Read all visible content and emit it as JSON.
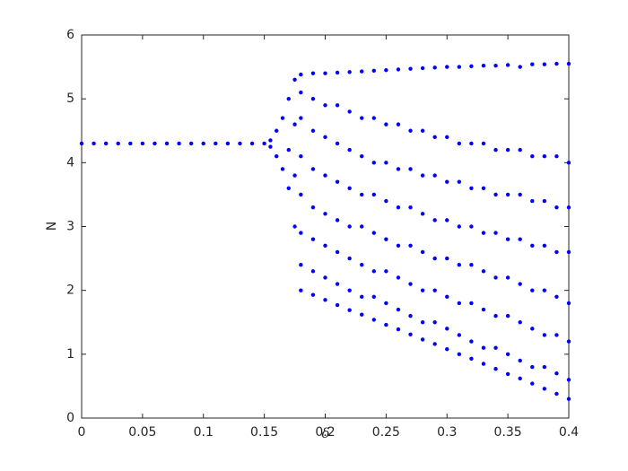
{
  "chart_data": {
    "type": "scatter",
    "xlabel": "δ",
    "ylabel": "N",
    "color": "#0000ff",
    "xlim": [
      0,
      0.4
    ],
    "ylim": [
      0,
      6
    ],
    "xticks": [
      0,
      0.05,
      0.1,
      0.15,
      0.2,
      0.25,
      0.3,
      0.35,
      0.4
    ],
    "yticks": [
      0,
      1,
      2,
      3,
      4,
      5,
      6
    ],
    "x": [
      0,
      0.01,
      0.02,
      0.03,
      0.04,
      0.05,
      0.06,
      0.07,
      0.08,
      0.09,
      0.1,
      0.11,
      0.12,
      0.13,
      0.14,
      0.15,
      0.155,
      0.155,
      0.16,
      0.16,
      0.165,
      0.165,
      0.17,
      0.17,
      0.17,
      0.175,
      0.175,
      0.175,
      0.175,
      0.18,
      0.18,
      0.18,
      0.18,
      0.18,
      0.18,
      0.18,
      0.18,
      0.19,
      0.19,
      0.19,
      0.19,
      0.19,
      0.19,
      0.19,
      0.19,
      0.2,
      0.2,
      0.2,
      0.2,
      0.2,
      0.2,
      0.2,
      0.2,
      0.21,
      0.21,
      0.21,
      0.21,
      0.21,
      0.21,
      0.21,
      0.21,
      0.22,
      0.22,
      0.22,
      0.22,
      0.22,
      0.22,
      0.22,
      0.22,
      0.23,
      0.23,
      0.23,
      0.23,
      0.23,
      0.23,
      0.23,
      0.23,
      0.24,
      0.24,
      0.24,
      0.24,
      0.24,
      0.24,
      0.24,
      0.24,
      0.25,
      0.25,
      0.25,
      0.25,
      0.25,
      0.25,
      0.25,
      0.25,
      0.26,
      0.26,
      0.26,
      0.26,
      0.26,
      0.26,
      0.26,
      0.26,
      0.27,
      0.27,
      0.27,
      0.27,
      0.27,
      0.27,
      0.27,
      0.27,
      0.28,
      0.28,
      0.28,
      0.28,
      0.28,
      0.28,
      0.28,
      0.28,
      0.29,
      0.29,
      0.29,
      0.29,
      0.29,
      0.29,
      0.29,
      0.29,
      0.3,
      0.3,
      0.3,
      0.3,
      0.3,
      0.3,
      0.3,
      0.3,
      0.31,
      0.31,
      0.31,
      0.31,
      0.31,
      0.31,
      0.31,
      0.31,
      0.32,
      0.32,
      0.32,
      0.32,
      0.32,
      0.32,
      0.32,
      0.32,
      0.33,
      0.33,
      0.33,
      0.33,
      0.33,
      0.33,
      0.33,
      0.33,
      0.34,
      0.34,
      0.34,
      0.34,
      0.34,
      0.34,
      0.34,
      0.34,
      0.35,
      0.35,
      0.35,
      0.35,
      0.35,
      0.35,
      0.35,
      0.35,
      0.36,
      0.36,
      0.36,
      0.36,
      0.36,
      0.36,
      0.36,
      0.36,
      0.37,
      0.37,
      0.37,
      0.37,
      0.37,
      0.37,
      0.37,
      0.37,
      0.38,
      0.38,
      0.38,
      0.38,
      0.38,
      0.38,
      0.38,
      0.38,
      0.39,
      0.39,
      0.39,
      0.39,
      0.39,
      0.39,
      0.39,
      0.39,
      0.4,
      0.4,
      0.4,
      0.4,
      0.4,
      0.4,
      0.4,
      0.4
    ],
    "values": [
      4.3,
      4.3,
      4.3,
      4.3,
      4.3,
      4.3,
      4.3,
      4.3,
      4.3,
      4.3,
      4.3,
      4.3,
      4.3,
      4.3,
      4.3,
      4.3,
      4.25,
      4.35,
      4.1,
      4.5,
      3.9,
      4.7,
      3.6,
      4.2,
      5.0,
      3.0,
      3.8,
      4.6,
      5.3,
      2.0,
      2.4,
      2.9,
      3.5,
      4.1,
      4.7,
      5.1,
      5.38,
      1.93,
      2.3,
      2.8,
      3.3,
      3.9,
      4.5,
      5.0,
      5.4,
      1.85,
      2.2,
      2.7,
      3.2,
      3.8,
      4.4,
      4.9,
      5.4,
      1.77,
      2.1,
      2.6,
      3.1,
      3.7,
      4.3,
      4.9,
      5.41,
      1.69,
      2.0,
      2.5,
      3.0,
      3.6,
      4.2,
      4.8,
      5.42,
      1.62,
      1.9,
      2.4,
      3.0,
      3.5,
      4.1,
      4.7,
      5.43,
      1.54,
      1.9,
      2.3,
      2.9,
      3.5,
      4.0,
      4.7,
      5.44,
      1.46,
      1.8,
      2.3,
      2.8,
      3.4,
      4.0,
      4.6,
      5.45,
      1.39,
      1.7,
      2.2,
      2.7,
      3.3,
      3.9,
      4.6,
      5.46,
      1.31,
      1.6,
      2.1,
      2.7,
      3.3,
      3.9,
      4.5,
      5.47,
      1.23,
      1.5,
      2.0,
      2.6,
      3.2,
      3.8,
      4.5,
      5.48,
      1.16,
      1.5,
      2.0,
      2.5,
      3.1,
      3.8,
      4.4,
      5.49,
      1.08,
      1.4,
      1.9,
      2.5,
      3.1,
      3.7,
      4.4,
      5.5,
      1.0,
      1.3,
      1.8,
      2.4,
      3.0,
      3.7,
      4.3,
      5.5,
      0.93,
      1.2,
      1.8,
      2.4,
      3.0,
      3.6,
      4.3,
      5.51,
      0.85,
      1.1,
      1.7,
      2.3,
      2.9,
      3.6,
      4.3,
      5.52,
      0.77,
      1.1,
      1.6,
      2.2,
      2.9,
      3.5,
      4.2,
      5.52,
      0.69,
      1.0,
      1.6,
      2.2,
      2.8,
      3.5,
      4.2,
      5.53,
      0.62,
      0.9,
      1.5,
      2.1,
      2.8,
      3.5,
      4.2,
      5.5,
      0.54,
      0.8,
      1.4,
      2.0,
      2.7,
      3.4,
      4.1,
      5.54,
      0.46,
      0.8,
      1.3,
      2.0,
      2.7,
      3.4,
      4.1,
      5.54,
      0.38,
      0.7,
      1.3,
      1.9,
      2.6,
      3.3,
      4.1,
      5.55,
      0.3,
      0.6,
      1.2,
      1.8,
      2.6,
      3.3,
      4.0,
      5.55
    ]
  }
}
